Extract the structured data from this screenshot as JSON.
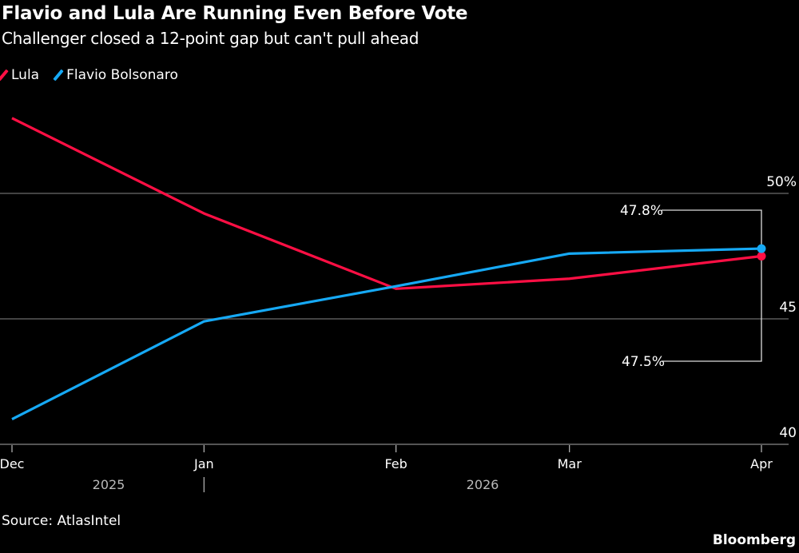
{
  "header": {
    "title": "Flavio and Lula Are Running Even Before Vote",
    "subtitle": "Challenger closed a 12-point gap but can't pull ahead"
  },
  "footer": {
    "source": "Source: AtlasIntel",
    "logo": "Bloomberg"
  },
  "colors": {
    "lula": "#ff0f44",
    "flavio": "#16a9f5",
    "grid": "#6b6b6b",
    "background": "#000000"
  },
  "chart_data": {
    "type": "line",
    "title": "Flavio and Lula Are Running Even Before Vote",
    "subtitle": "Challenger closed a 12-point gap but can't pull ahead",
    "x": [
      "2025-12-01",
      "2026-01-01",
      "2026-02-01",
      "2026-03-01",
      "2026-04-01"
    ],
    "series": [
      {
        "name": "Lula",
        "color": "#ff0f44",
        "values": [
          53.0,
          49.2,
          46.2,
          46.6,
          47.5
        ]
      },
      {
        "name": "Flavio Bolsonaro",
        "color": "#16a9f5",
        "values": [
          41.0,
          44.9,
          46.3,
          47.6,
          47.8
        ]
      }
    ],
    "x_tick_labels": [
      "Dec",
      "Jan",
      "Feb",
      "Mar",
      "Apr"
    ],
    "x_year_labels": [
      "2025",
      "2026"
    ],
    "y_ticks": [
      40,
      45,
      50
    ],
    "y_tick_labels": [
      "40",
      "45",
      "50%"
    ],
    "ylim": [
      40,
      55
    ],
    "grid": true,
    "legend": "top-left",
    "annotations": [
      {
        "series": "Flavio Bolsonaro",
        "label": "47.8%"
      },
      {
        "series": "Lula",
        "label": "47.5%"
      }
    ],
    "source": "Source: AtlasIntel"
  }
}
